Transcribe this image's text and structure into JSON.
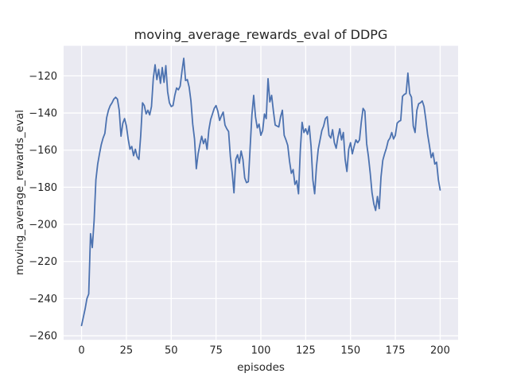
{
  "chart_data": {
    "type": "line",
    "title": "moving_average_rewards_eval of DDPG",
    "xlabel": "episodes",
    "ylabel": "moving_average_rewards_eval",
    "xlim": [
      -10,
      210
    ],
    "ylim": [
      -262.2,
      -103.8
    ],
    "xticks": [
      0,
      25,
      50,
      75,
      100,
      125,
      150,
      175,
      200
    ],
    "yticks": [
      -260,
      -240,
      -220,
      -200,
      -180,
      -160,
      -140,
      -120
    ],
    "grid": true,
    "legend": false,
    "colors": {
      "line": "#4c72b0",
      "plot_background": "#eaeaf2",
      "gridline": "#ffffff",
      "text": "#262626",
      "figure_background": "#ffffff"
    },
    "series": [
      {
        "name": "moving_average_rewards_eval",
        "x_start": 0,
        "x_step": 1,
        "y": [
          -254.5,
          -250.0,
          -245.5,
          -240.0,
          -237.5,
          -205.0,
          -212.5,
          -198.0,
          -176.0,
          -167.5,
          -162.0,
          -157.0,
          -153.5,
          -151.0,
          -142.5,
          -138.5,
          -136.0,
          -134.5,
          -132.5,
          -131.5,
          -132.5,
          -138.5,
          -152.5,
          -145.5,
          -143.0,
          -147.0,
          -154.0,
          -159.5,
          -158.0,
          -163.0,
          -159.5,
          -163.5,
          -165.0,
          -152.0,
          -134.5,
          -136.0,
          -140.5,
          -138.5,
          -141.0,
          -136.5,
          -121.5,
          -114.0,
          -122.0,
          -116.5,
          -124.0,
          -115.5,
          -123.5,
          -114.5,
          -128.5,
          -134.5,
          -136.5,
          -136.0,
          -130.5,
          -126.5,
          -127.5,
          -125.5,
          -117.5,
          -110.5,
          -122.5,
          -122.0,
          -126.0,
          -133.5,
          -146.0,
          -154.0,
          -170.0,
          -162.0,
          -157.0,
          -152.5,
          -156.5,
          -154.0,
          -159.5,
          -149.0,
          -143.5,
          -140.5,
          -137.5,
          -136.0,
          -139.0,
          -144.0,
          -141.5,
          -139.5,
          -146.5,
          -148.5,
          -150.0,
          -163.5,
          -172.0,
          -183.0,
          -165.0,
          -162.5,
          -167.0,
          -160.5,
          -165.0,
          -175.0,
          -177.5,
          -177.0,
          -159.0,
          -141.0,
          -130.5,
          -142.0,
          -148.0,
          -146.0,
          -152.0,
          -149.5,
          -140.5,
          -143.0,
          -121.5,
          -134.0,
          -130.5,
          -139.0,
          -146.5,
          -147.0,
          -147.5,
          -142.0,
          -138.5,
          -152.0,
          -154.5,
          -157.5,
          -166.0,
          -172.5,
          -170.5,
          -178.5,
          -176.5,
          -183.5,
          -160.0,
          -145.0,
          -150.5,
          -148.5,
          -151.5,
          -147.0,
          -158.0,
          -176.0,
          -183.5,
          -169.0,
          -159.5,
          -154.5,
          -149.5,
          -147.0,
          -143.0,
          -142.0,
          -152.0,
          -153.5,
          -149.0,
          -156.0,
          -159.0,
          -153.0,
          -148.5,
          -154.5,
          -150.5,
          -165.0,
          -171.5,
          -159.5,
          -156.0,
          -162.0,
          -158.0,
          -154.5,
          -156.0,
          -154.5,
          -145.0,
          -137.5,
          -139.0,
          -156.5,
          -163.5,
          -172.5,
          -183.0,
          -189.0,
          -192.5,
          -185.0,
          -191.5,
          -174.5,
          -165.5,
          -162.0,
          -159.0,
          -155.0,
          -153.5,
          -150.5,
          -154.0,
          -152.0,
          -145.5,
          -144.5,
          -144.0,
          -131.0,
          -130.0,
          -129.5,
          -118.5,
          -129.5,
          -131.5,
          -147.0,
          -150.5,
          -138.5,
          -135.0,
          -134.5,
          -133.5,
          -136.5,
          -143.5,
          -151.5,
          -157.5,
          -164.0,
          -161.5,
          -167.5,
          -166.5,
          -176.0,
          -181.5
        ]
      }
    ]
  }
}
